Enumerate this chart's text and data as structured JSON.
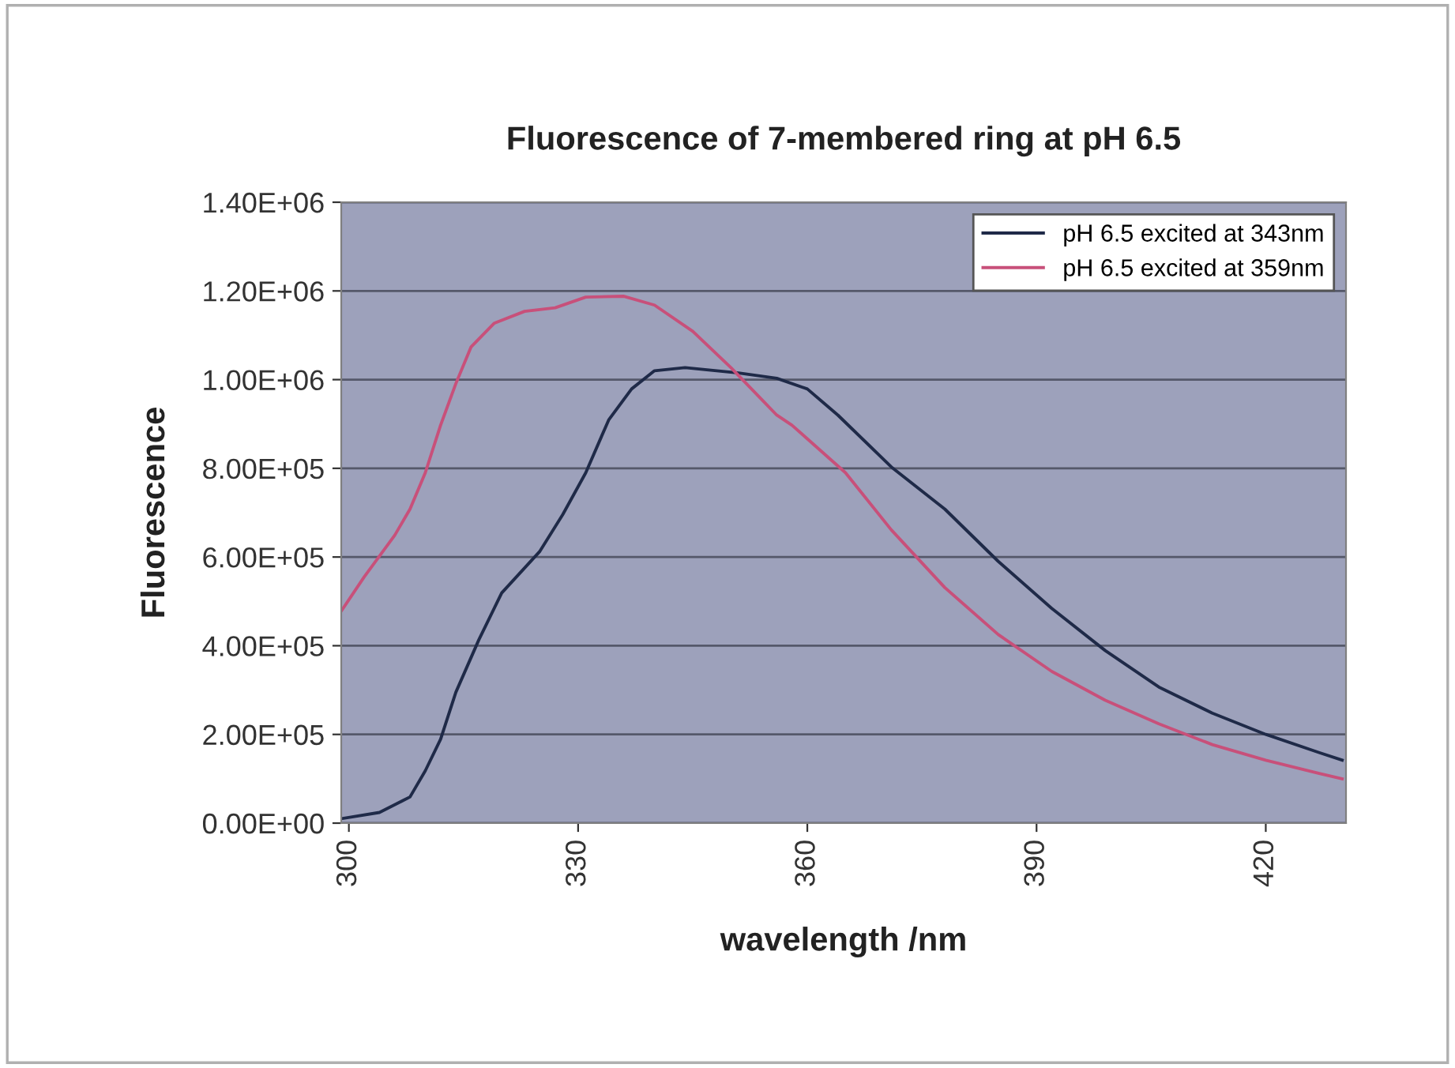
{
  "chart_data": {
    "type": "line",
    "title": "Fluorescence of 7-membered ring at pH 6.5",
    "xlabel": "wavelength /nm",
    "ylabel": "Fluorescence",
    "xlim": [
      299,
      430.5
    ],
    "xticks": [
      300,
      330,
      360,
      390,
      420
    ],
    "ylim": [
      0,
      1400000
    ],
    "yticks": [
      {
        "value": 0,
        "label": "0.00E+00"
      },
      {
        "value": 200000,
        "label": "2.00E+05"
      },
      {
        "value": 400000,
        "label": "4.00E+05"
      },
      {
        "value": 600000,
        "label": "6.00E+05"
      },
      {
        "value": 800000,
        "label": "8.00E+05"
      },
      {
        "value": 1000000,
        "label": "1.00E+06"
      },
      {
        "value": 1200000,
        "label": "1.20E+06"
      },
      {
        "value": 1400000,
        "label": "1.40E+06"
      }
    ],
    "grid": "y",
    "legend": "top right",
    "marker": "none",
    "line_style": "solid",
    "series": [
      {
        "name": "pH 6.5 excited at 343nm",
        "color": "#1f2a48",
        "x": [
          299,
          304,
          308,
          310,
          312,
          314,
          317,
          320,
          325,
          328,
          331,
          334,
          337,
          340,
          344,
          351,
          356,
          360,
          364,
          371,
          378,
          385,
          392,
          399,
          406,
          413,
          420,
          427,
          430
        ],
        "values": [
          10000,
          24000,
          59000,
          118000,
          189000,
          295000,
          413000,
          519000,
          613000,
          696000,
          790000,
          909000,
          979000,
          1020000,
          1027000,
          1015000,
          1003000,
          979000,
          920000,
          803000,
          708000,
          590000,
          484000,
          389000,
          307000,
          248000,
          200000,
          159000,
          142000
        ]
      },
      {
        "name": "pH 6.5 excited at 359nm",
        "color": "#c8507a",
        "x": [
          299,
          302,
          306,
          308,
          310,
          312,
          314,
          316,
          319,
          323,
          327,
          331,
          336,
          340,
          345,
          350,
          356,
          358,
          365,
          371,
          378,
          385,
          392,
          399,
          406,
          413,
          420,
          427,
          430
        ],
        "values": [
          478000,
          555000,
          649000,
          708000,
          790000,
          897000,
          991000,
          1074000,
          1127000,
          1154000,
          1162000,
          1186000,
          1188000,
          1168000,
          1109000,
          1027000,
          920000,
          897000,
          790000,
          661000,
          531000,
          425000,
          342000,
          277000,
          224000,
          177000,
          142000,
          112000,
          100000
        ]
      }
    ]
  }
}
